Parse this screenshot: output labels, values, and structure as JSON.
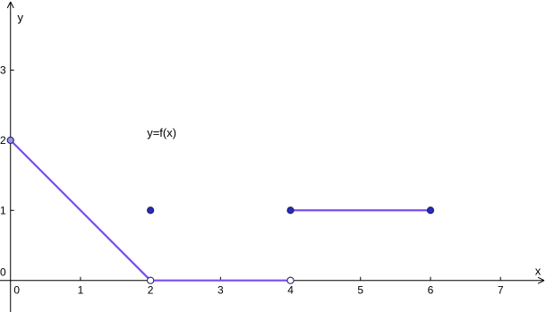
{
  "chart_data": {
    "type": "line",
    "xlabel": "x",
    "ylabel": "y",
    "xlim": [
      -0.15,
      7.65
    ],
    "ylim": [
      -0.45,
      4.0
    ],
    "origin_label": "0",
    "x_ticks": [
      {
        "value": 0,
        "label": "0"
      },
      {
        "value": 1,
        "label": "1"
      },
      {
        "value": 2,
        "label": "2"
      },
      {
        "value": 3,
        "label": "3"
      },
      {
        "value": 4,
        "label": "4"
      },
      {
        "value": 5,
        "label": "5"
      },
      {
        "value": 6,
        "label": "6"
      },
      {
        "value": 7,
        "label": "7"
      }
    ],
    "y_ticks": [
      {
        "value": 1,
        "label": "1"
      },
      {
        "value": 2,
        "label": "2"
      },
      {
        "value": 3,
        "label": "3"
      }
    ],
    "series": [
      {
        "segments": [
          {
            "from": [
              0,
              2
            ],
            "to": [
              2,
              0
            ]
          },
          {
            "from": [
              2,
              0
            ],
            "to": [
              4,
              0
            ]
          },
          {
            "from": [
              4,
              1
            ],
            "to": [
              6,
              1
            ]
          }
        ],
        "points": [
          {
            "x": 0,
            "y": 2,
            "style": "filled-light"
          },
          {
            "x": 2,
            "y": 0,
            "style": "open"
          },
          {
            "x": 2,
            "y": 1,
            "style": "filled"
          },
          {
            "x": 4,
            "y": 0,
            "style": "open"
          },
          {
            "x": 4,
            "y": 1,
            "style": "filled"
          },
          {
            "x": 6,
            "y": 1,
            "style": "filled"
          }
        ]
      }
    ],
    "annotations": [
      {
        "text": "y=f(x)",
        "x": 1.95,
        "y": 2.05
      }
    ],
    "grid": false,
    "colors": {
      "line": "#7a4bf0",
      "point_fill": "#2b2bb8",
      "point_fill_light": "#9a94e8",
      "point_stroke": "#1a1a6a",
      "axis": "#000000"
    }
  }
}
